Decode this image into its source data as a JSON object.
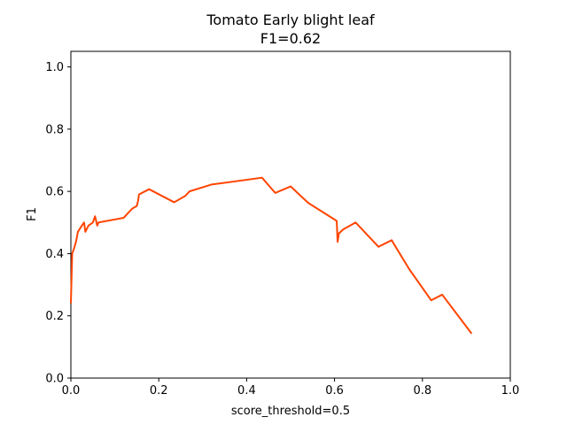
{
  "chart_data": {
    "type": "line",
    "title": "Tomato Early blight leaf",
    "subtitle": "F1=0.62",
    "xlabel": "score_threshold=0.5",
    "ylabel": "F1",
    "xlim": [
      0.0,
      1.0
    ],
    "ylim": [
      0.0,
      1.05
    ],
    "xticks": [
      "0.0",
      "0.2",
      "0.4",
      "0.6",
      "0.8",
      "1.0"
    ],
    "yticks": [
      "0.0",
      "0.2",
      "0.4",
      "0.6",
      "0.8",
      "1.0"
    ],
    "grid": false,
    "line_color": "#ff4500",
    "series": [
      {
        "x": [
          0.0,
          0.003,
          0.008,
          0.012,
          0.016,
          0.025,
          0.03,
          0.033,
          0.04,
          0.05,
          0.055,
          0.06,
          0.063,
          0.12,
          0.13,
          0.14,
          0.15,
          0.153,
          0.155,
          0.178,
          0.235,
          0.26,
          0.27,
          0.32,
          0.435,
          0.465,
          0.5,
          0.54,
          0.605,
          0.607,
          0.61,
          0.62,
          0.648,
          0.7,
          0.73,
          0.77,
          0.82,
          0.845,
          0.912
        ],
        "y": [
          0.24,
          0.4,
          0.42,
          0.44,
          0.47,
          0.49,
          0.5,
          0.47,
          0.49,
          0.5,
          0.52,
          0.49,
          0.5,
          0.515,
          0.53,
          0.545,
          0.553,
          0.57,
          0.59,
          0.607,
          0.565,
          0.585,
          0.6,
          0.622,
          0.644,
          0.595,
          0.616,
          0.563,
          0.505,
          0.438,
          0.465,
          0.478,
          0.5,
          0.422,
          0.443,
          0.35,
          0.25,
          0.268,
          0.143
        ]
      }
    ]
  }
}
